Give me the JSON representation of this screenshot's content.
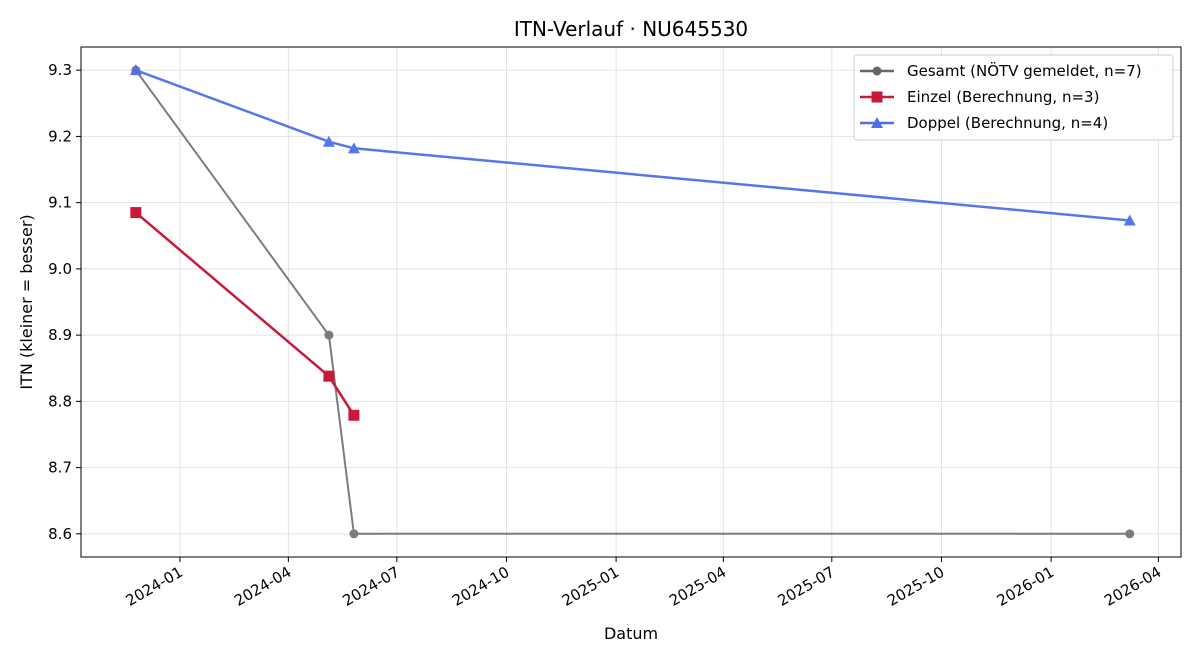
{
  "chart_data": {
    "type": "line",
    "title": "ITN-Verlauf · NU645530",
    "xlabel": "Datum",
    "ylabel": "ITN  (kleiner = besser)",
    "xlim": [
      "2023-10-10",
      "2026-04-20"
    ],
    "ylim": [
      8.565,
      9.335
    ],
    "x_ticks": [
      "2024-01-01",
      "2024-04-01",
      "2024-07-01",
      "2024-10-01",
      "2025-01-01",
      "2025-04-01",
      "2025-07-01",
      "2025-10-01",
      "2026-01-01",
      "2026-04-01"
    ],
    "x_tick_labels": [
      "2024-01",
      "2024-04",
      "2024-07",
      "2024-10",
      "2025-01",
      "2025-04",
      "2025-07",
      "2025-10",
      "2026-01",
      "2026-04"
    ],
    "y_ticks": [
      8.6,
      8.7,
      8.8,
      8.9,
      9.0,
      9.1,
      9.2,
      9.3
    ],
    "y_tick_labels": [
      "8.6",
      "8.7",
      "8.8",
      "8.9",
      "9.0",
      "9.1",
      "9.2",
      "9.3"
    ],
    "grid": true,
    "legend_position": "top-right",
    "series": [
      {
        "name": "Gesamt (NÖTV gemeldet, n=7)",
        "color": "#666666",
        "marker": "circle",
        "points": [
          {
            "x": "2023-11-25",
            "y": 9.3
          },
          {
            "x": "2024-05-05",
            "y": 8.9
          },
          {
            "x": "2024-05-26",
            "y": 8.6
          },
          {
            "x": "2026-03-08",
            "y": 8.6
          }
        ]
      },
      {
        "name": "Einzel (Berechnung, n=3)",
        "color": "#c8193c",
        "marker": "square",
        "points": [
          {
            "x": "2023-11-25",
            "y": 9.085
          },
          {
            "x": "2024-05-05",
            "y": 8.838
          },
          {
            "x": "2024-05-26",
            "y": 8.779
          }
        ]
      },
      {
        "name": "Doppel (Berechnung, n=4)",
        "color": "#4f6fe8",
        "marker": "triangle",
        "points": [
          {
            "x": "2023-11-25",
            "y": 9.3
          },
          {
            "x": "2024-05-05",
            "y": 9.192
          },
          {
            "x": "2024-05-26",
            "y": 9.182
          },
          {
            "x": "2026-03-08",
            "y": 9.073
          }
        ]
      }
    ]
  }
}
